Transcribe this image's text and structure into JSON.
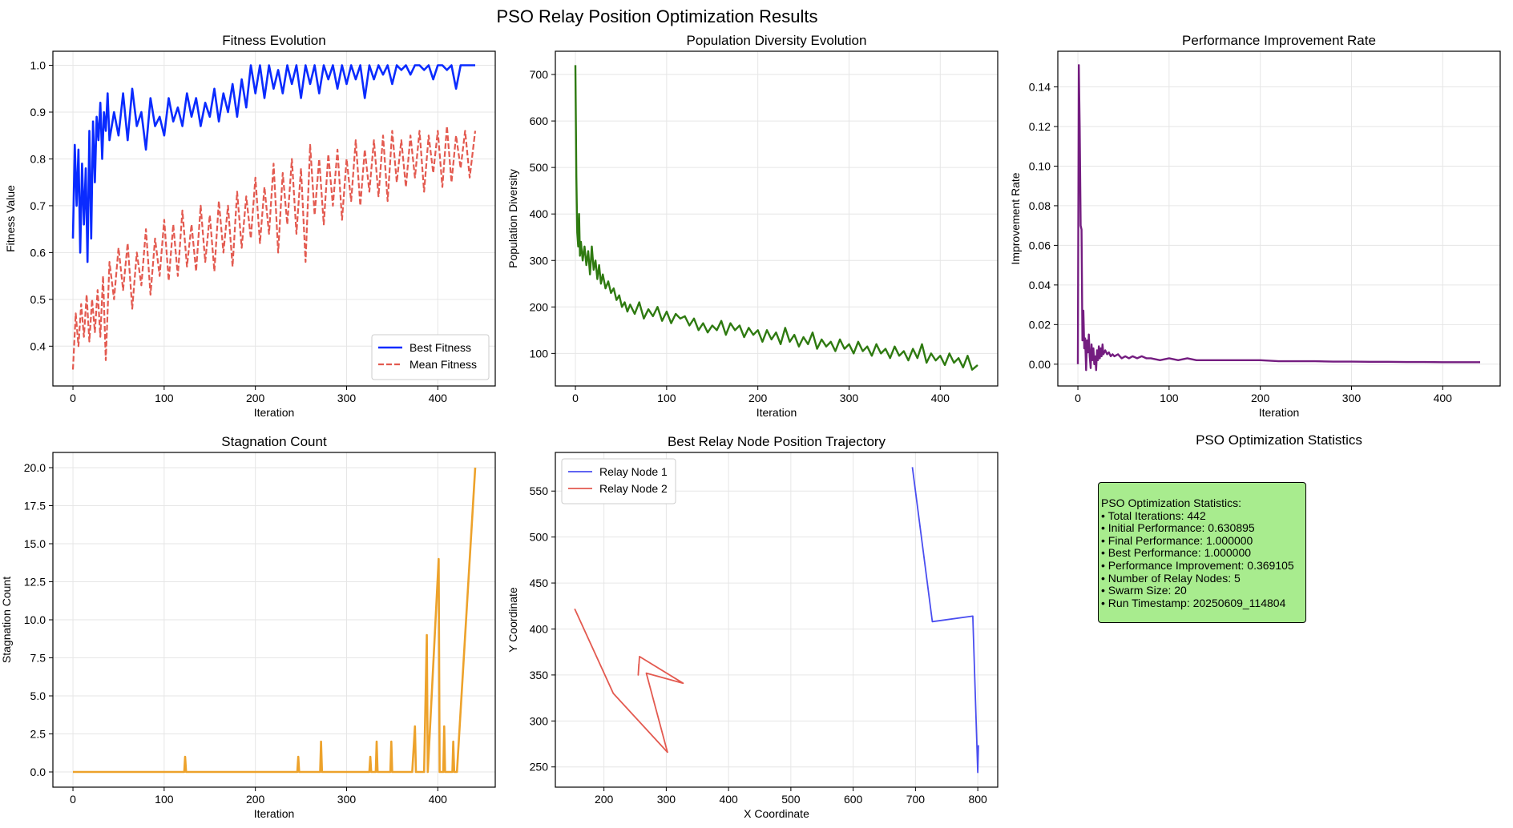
{
  "figure": {
    "title": "PSO Relay Position Optimization Results"
  },
  "colors": {
    "best": "#0a2bff",
    "mean": "#e35a50",
    "diversity": "#2e7a10",
    "improvement": "#741d80",
    "stagnation": "#eda22b",
    "relay1": "#4a4ef0",
    "relay2": "#e35a50",
    "grid": "#e6e6e6",
    "statsbox": "#a8ec8e"
  },
  "chart_data": [
    {
      "id": "fitness",
      "type": "line",
      "title": "Fitness Evolution",
      "xlabel": "Iteration",
      "ylabel": "Fitness Value",
      "xlim": [
        -22,
        463
      ],
      "ylim": [
        0.315,
        1.03
      ],
      "xticks": [
        0,
        100,
        200,
        300,
        400
      ],
      "yticks": [
        0.4,
        0.5,
        0.6,
        0.7,
        0.8,
        0.9,
        1.0
      ],
      "ytick_format": 1,
      "grid": true,
      "legend": "lower-right",
      "series": [
        {
          "name": "Best Fitness",
          "style": "solid",
          "width": 2.6,
          "color_key": "best",
          "x": [
            0,
            2,
            4,
            6,
            8,
            10,
            12,
            14,
            16,
            18,
            20,
            22,
            24,
            26,
            28,
            30,
            32,
            34,
            36,
            38,
            40,
            45,
            50,
            55,
            60,
            65,
            70,
            75,
            80,
            85,
            90,
            95,
            100,
            105,
            110,
            115,
            120,
            125,
            130,
            135,
            140,
            145,
            150,
            155,
            160,
            165,
            170,
            175,
            180,
            185,
            190,
            195,
            200,
            205,
            210,
            215,
            220,
            225,
            230,
            235,
            240,
            245,
            250,
            255,
            260,
            265,
            270,
            275,
            280,
            285,
            290,
            295,
            300,
            305,
            310,
            315,
            320,
            325,
            330,
            335,
            340,
            345,
            350,
            355,
            360,
            365,
            370,
            375,
            380,
            385,
            390,
            395,
            400,
            405,
            410,
            415,
            420,
            425,
            430,
            435,
            441
          ],
          "y": [
            0.63,
            0.83,
            0.7,
            0.82,
            0.6,
            0.79,
            0.66,
            0.78,
            0.58,
            0.86,
            0.63,
            0.88,
            0.75,
            0.89,
            0.84,
            0.92,
            0.8,
            0.9,
            0.86,
            0.94,
            0.84,
            0.9,
            0.85,
            0.94,
            0.84,
            0.95,
            0.87,
            0.9,
            0.82,
            0.93,
            0.87,
            0.89,
            0.85,
            0.93,
            0.88,
            0.91,
            0.87,
            0.94,
            0.89,
            0.93,
            0.87,
            0.92,
            0.89,
            0.95,
            0.88,
            0.94,
            0.9,
            0.96,
            0.89,
            0.97,
            0.91,
            1.0,
            0.94,
            1.0,
            0.93,
            1.0,
            0.95,
            0.99,
            0.94,
            1.0,
            0.96,
            1.0,
            0.93,
            1.0,
            0.96,
            1.0,
            0.94,
            1.0,
            0.97,
            1.0,
            0.95,
            1.0,
            0.96,
            1.0,
            0.97,
            1.0,
            0.93,
            1.0,
            0.97,
            1.0,
            0.98,
            1.0,
            0.96,
            1.0,
            0.99,
            1.0,
            0.98,
            1.0,
            1.0,
            0.99,
            1.0,
            0.97,
            1.0,
            1.0,
            0.99,
            1.0,
            0.95,
            1.0,
            1.0,
            1.0,
            1.0
          ]
        },
        {
          "name": "Mean Fitness",
          "style": "dashed",
          "width": 2.2,
          "color_key": "mean",
          "x": [
            0,
            3,
            6,
            9,
            12,
            15,
            18,
            21,
            24,
            27,
            30,
            33,
            36,
            40,
            45,
            50,
            55,
            60,
            65,
            70,
            75,
            80,
            85,
            90,
            95,
            100,
            105,
            110,
            115,
            120,
            125,
            130,
            135,
            140,
            145,
            150,
            155,
            160,
            165,
            170,
            175,
            180,
            185,
            190,
            195,
            200,
            205,
            210,
            215,
            220,
            225,
            230,
            235,
            240,
            245,
            250,
            255,
            260,
            265,
            270,
            275,
            280,
            285,
            290,
            295,
            300,
            305,
            310,
            315,
            320,
            325,
            330,
            335,
            340,
            345,
            350,
            355,
            360,
            365,
            370,
            375,
            380,
            385,
            390,
            395,
            400,
            405,
            410,
            415,
            420,
            425,
            430,
            435,
            441
          ],
          "y": [
            0.35,
            0.47,
            0.4,
            0.49,
            0.42,
            0.51,
            0.41,
            0.5,
            0.43,
            0.52,
            0.42,
            0.55,
            0.37,
            0.58,
            0.5,
            0.61,
            0.52,
            0.62,
            0.48,
            0.6,
            0.53,
            0.65,
            0.51,
            0.63,
            0.55,
            0.67,
            0.54,
            0.66,
            0.55,
            0.69,
            0.57,
            0.66,
            0.56,
            0.7,
            0.58,
            0.68,
            0.56,
            0.71,
            0.6,
            0.7,
            0.57,
            0.73,
            0.61,
            0.72,
            0.63,
            0.76,
            0.62,
            0.74,
            0.64,
            0.79,
            0.6,
            0.77,
            0.66,
            0.8,
            0.64,
            0.78,
            0.58,
            0.83,
            0.68,
            0.8,
            0.66,
            0.81,
            0.7,
            0.82,
            0.67,
            0.8,
            0.71,
            0.84,
            0.7,
            0.82,
            0.73,
            0.84,
            0.72,
            0.85,
            0.71,
            0.86,
            0.75,
            0.84,
            0.74,
            0.85,
            0.76,
            0.86,
            0.73,
            0.85,
            0.77,
            0.86,
            0.74,
            0.87,
            0.75,
            0.85,
            0.78,
            0.86,
            0.76,
            0.86
          ]
        }
      ]
    },
    {
      "id": "diversity",
      "type": "line",
      "title": "Population Diversity Evolution",
      "xlabel": "Iteration",
      "ylabel": "Population Diversity",
      "xlim": [
        -22,
        463
      ],
      "ylim": [
        30,
        750
      ],
      "xticks": [
        0,
        100,
        200,
        300,
        400
      ],
      "yticks": [
        100,
        200,
        300,
        400,
        500,
        600,
        700
      ],
      "ytick_format": 0,
      "grid": true,
      "series": [
        {
          "name": "",
          "style": "solid",
          "width": 2.4,
          "color_key": "diversity",
          "x": [
            0,
            1,
            2,
            3,
            4,
            5,
            6,
            8,
            10,
            12,
            14,
            16,
            18,
            20,
            22,
            24,
            26,
            28,
            30,
            33,
            36,
            39,
            42,
            45,
            48,
            51,
            54,
            57,
            60,
            65,
            70,
            75,
            80,
            85,
            90,
            95,
            100,
            105,
            110,
            115,
            120,
            125,
            130,
            135,
            140,
            145,
            150,
            155,
            160,
            165,
            170,
            175,
            180,
            185,
            190,
            195,
            200,
            205,
            210,
            215,
            220,
            225,
            230,
            235,
            240,
            245,
            250,
            255,
            260,
            265,
            270,
            275,
            280,
            285,
            290,
            295,
            300,
            305,
            310,
            315,
            320,
            325,
            330,
            335,
            340,
            345,
            350,
            355,
            360,
            365,
            370,
            375,
            380,
            385,
            390,
            395,
            400,
            405,
            410,
            415,
            420,
            425,
            430,
            435,
            441
          ],
          "y": [
            720,
            480,
            360,
            330,
            400,
            310,
            340,
            300,
            330,
            290,
            320,
            270,
            330,
            280,
            300,
            260,
            290,
            250,
            270,
            240,
            255,
            230,
            240,
            215,
            225,
            200,
            210,
            190,
            205,
            185,
            210,
            175,
            195,
            180,
            200,
            170,
            190,
            165,
            185,
            175,
            180,
            160,
            175,
            150,
            165,
            145,
            160,
            150,
            170,
            140,
            165,
            150,
            160,
            135,
            155,
            140,
            150,
            125,
            150,
            130,
            145,
            120,
            155,
            125,
            140,
            115,
            135,
            120,
            145,
            110,
            130,
            115,
            125,
            105,
            130,
            110,
            120,
            100,
            125,
            105,
            115,
            95,
            120,
            100,
            110,
            90,
            115,
            95,
            105,
            85,
            110,
            90,
            120,
            80,
            100,
            85,
            95,
            75,
            100,
            80,
            90,
            70,
            95,
            65,
            75
          ]
        }
      ]
    },
    {
      "id": "improvement",
      "type": "line",
      "title": "Performance Improvement Rate",
      "xlabel": "Iteration",
      "ylabel": "Improvement Rate",
      "xlim": [
        -22,
        463
      ],
      "ylim": [
        -0.011,
        0.158
      ],
      "xticks": [
        0,
        100,
        200,
        300,
        400
      ],
      "yticks": [
        0.0,
        0.02,
        0.04,
        0.06,
        0.08,
        0.1,
        0.12,
        0.14
      ],
      "ytick_format": 2,
      "grid": true,
      "series": [
        {
          "name": "",
          "style": "solid",
          "width": 2.4,
          "color_key": "improvement",
          "x": [
            0,
            1,
            2,
            3,
            4,
            5,
            6,
            7,
            8,
            9,
            10,
            11,
            12,
            13,
            14,
            15,
            16,
            17,
            18,
            19,
            20,
            21,
            22,
            23,
            24,
            25,
            26,
            27,
            28,
            30,
            32,
            34,
            36,
            38,
            40,
            44,
            48,
            52,
            56,
            60,
            65,
            70,
            75,
            80,
            90,
            100,
            110,
            120,
            130,
            140,
            150,
            160,
            170,
            180,
            190,
            200,
            220,
            240,
            260,
            280,
            300,
            320,
            340,
            360,
            380,
            400,
            420,
            441
          ],
          "y": [
            0.0,
            0.151,
            0.12,
            0.07,
            0.068,
            0.012,
            0.027,
            0.008,
            0.013,
            -0.003,
            0.012,
            0.006,
            0.015,
            0.004,
            -0.002,
            0.01,
            0.002,
            0.008,
            0.0,
            0.004,
            -0.003,
            0.007,
            0.002,
            0.009,
            0.003,
            0.008,
            0.004,
            0.01,
            0.005,
            0.007,
            0.005,
            0.006,
            0.004,
            0.005,
            0.004,
            0.005,
            0.003,
            0.004,
            0.003,
            0.004,
            0.003,
            0.004,
            0.003,
            0.003,
            0.002,
            0.003,
            0.002,
            0.003,
            0.002,
            0.002,
            0.002,
            0.002,
            0.002,
            0.002,
            0.002,
            0.002,
            0.0015,
            0.0015,
            0.0015,
            0.0013,
            0.0013,
            0.0012,
            0.0012,
            0.0011,
            0.0011,
            0.001,
            0.001,
            0.001
          ]
        }
      ]
    },
    {
      "id": "stagnation",
      "type": "line",
      "title": "Stagnation Count",
      "xlabel": "Iteration",
      "ylabel": "Stagnation Count",
      "xlim": [
        -22,
        463
      ],
      "ylim": [
        -1.0,
        21.0
      ],
      "xticks": [
        0,
        100,
        200,
        300,
        400
      ],
      "yticks": [
        0.0,
        2.5,
        5.0,
        7.5,
        10.0,
        12.5,
        15.0,
        17.5,
        20.0
      ],
      "ytick_format": 1,
      "grid": true,
      "series": [
        {
          "name": "",
          "style": "solid",
          "width": 2.6,
          "color_key": "stagnation",
          "x": [
            0,
            122,
            123,
            124,
            246,
            247,
            248,
            271,
            272,
            273,
            325,
            326,
            327,
            332,
            333,
            334,
            348,
            349,
            350,
            372,
            375,
            376,
            385,
            388,
            389,
            401,
            402,
            406,
            407,
            408,
            416,
            417,
            418,
            420,
            421,
            441
          ],
          "y": [
            0,
            0,
            1,
            0,
            0,
            1,
            0,
            0,
            2,
            0,
            0,
            1,
            0,
            0,
            2,
            0,
            0,
            2,
            0,
            0,
            3,
            0,
            0,
            9,
            0,
            14,
            0,
            0,
            3,
            0,
            0,
            2,
            0,
            0,
            0,
            20
          ]
        }
      ]
    },
    {
      "id": "trajectory",
      "type": "line",
      "title": "Best Relay Node Position Trajectory",
      "xlabel": "X Coordinate",
      "ylabel": "Y Coordinate",
      "xlim": [
        122,
        832
      ],
      "ylim": [
        228,
        592
      ],
      "xticks": [
        200,
        300,
        400,
        500,
        600,
        700,
        800
      ],
      "yticks": [
        250,
        300,
        350,
        400,
        450,
        500,
        550
      ],
      "ytick_format": 0,
      "grid": true,
      "legend": "upper-left",
      "series": [
        {
          "name": "Relay Node 1",
          "style": "solid",
          "width": 1.8,
          "color_key": "relay1",
          "x": [
            695,
            727,
            792,
            800,
            801,
            800
          ],
          "y": [
            576,
            408,
            414,
            244,
            273,
            244
          ]
        },
        {
          "name": "Relay Node 2",
          "style": "solid",
          "width": 1.8,
          "color_key": "relay2",
          "x": [
            153,
            215,
            302,
            268,
            327,
            257,
            255,
            256
          ],
          "y": [
            422,
            330,
            266,
            352,
            341,
            370,
            350,
            362
          ]
        }
      ]
    }
  ],
  "stats": {
    "title": "PSO Optimization Statistics",
    "lines": [
      "PSO Optimization Statistics:",
      "• Total Iterations: 442",
      "• Initial Performance: 0.630895",
      "• Final Performance: 1.000000",
      "• Best Performance: 1.000000",
      "• Performance Improvement: 0.369105",
      "• Number of Relay Nodes: 5",
      "• Swarm Size: 20",
      "• Run Timestamp: 20250609_114804"
    ]
  }
}
